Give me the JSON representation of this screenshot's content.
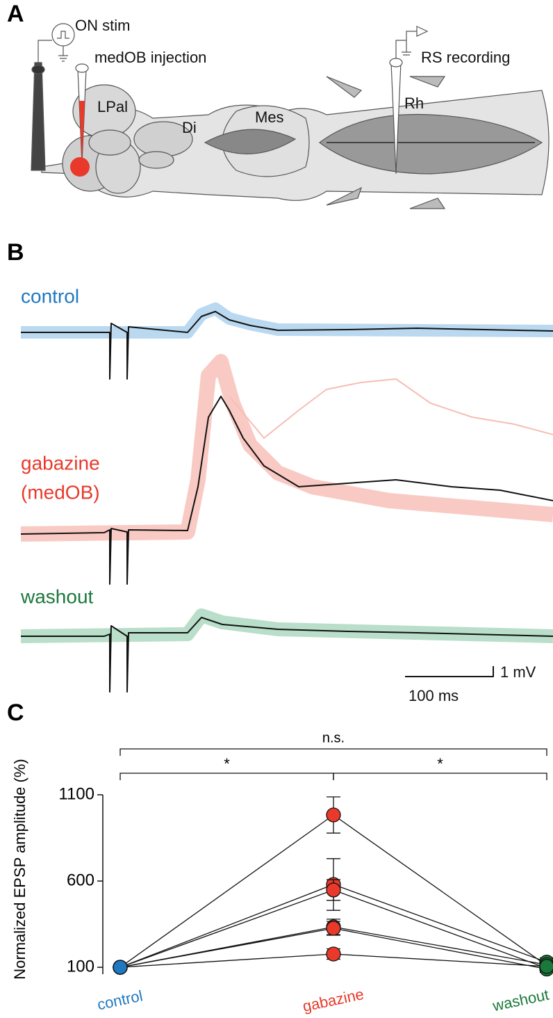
{
  "panel_a": {
    "label": "A",
    "stim": "ON stim",
    "injection": "medOB injection",
    "recording": "RS recording",
    "regions": [
      "LPal",
      "Di",
      "Mes",
      "Rh"
    ]
  },
  "panel_b": {
    "label": "B",
    "conditions": [
      "control",
      "gabazine",
      "(medOB)",
      "washout"
    ],
    "scale_y": "1 mV",
    "scale_x": "100 ms"
  },
  "panel_c": {
    "label": "C"
  },
  "chart_data": {
    "type": "paired",
    "ylabel": "Normalized EPSP amplitude (%)",
    "categories": [
      "control",
      "gabazine",
      "washout"
    ],
    "category_colors": [
      "#1f78c1",
      "#e8392a",
      "#19793a"
    ],
    "ylim": [
      60,
      1100
    ],
    "yticks": [
      100,
      600,
      1100
    ],
    "series": [
      {
        "values": [
          100,
          983,
          110
        ],
        "errors": [
          15,
          105,
          20
        ]
      },
      {
        "values": [
          100,
          580,
          130
        ],
        "errors": [
          15,
          150,
          25
        ]
      },
      {
        "values": [
          100,
          548,
          95
        ],
        "errors": [
          15,
          60,
          20
        ]
      },
      {
        "values": [
          100,
          334,
          115
        ],
        "errors": [
          15,
          45,
          20
        ]
      },
      {
        "values": [
          100,
          326,
          90
        ],
        "errors": [
          15,
          40,
          20
        ]
      },
      {
        "values": [
          100,
          177,
          105
        ],
        "errors": [
          15,
          30,
          20
        ]
      }
    ],
    "annotations": [
      "n.s.",
      "*",
      "*"
    ]
  }
}
